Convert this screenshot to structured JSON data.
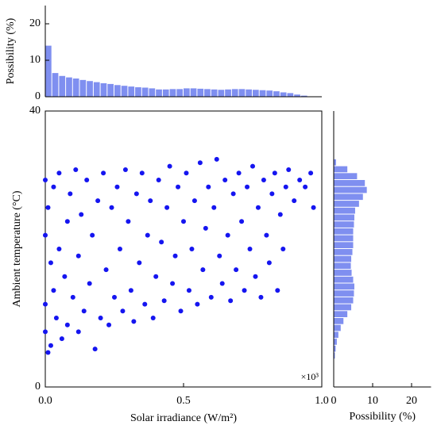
{
  "chart_data": [
    {
      "type": "scatter",
      "x_label": "Solar irradiance (W/m²)",
      "y_label": "Ambient temperature (°C)",
      "annotation": "×10³",
      "color": "#1515f0",
      "xlim": [
        0,
        1
      ],
      "ylim": [
        0,
        40
      ],
      "xticks": [
        {
          "value": 0,
          "label": "0.0"
        },
        {
          "value": 0.5,
          "label": "0.5"
        },
        {
          "value": 1,
          "label": "1.0"
        }
      ],
      "yticks": [
        0,
        40
      ],
      "x": [
        0.0,
        0.0,
        0.0,
        0.0,
        0.01,
        0.01,
        0.02,
        0.02,
        0.03,
        0.03,
        0.04,
        0.05,
        0.05,
        0.06,
        0.07,
        0.08,
        0.08,
        0.09,
        0.1,
        0.11,
        0.12,
        0.12,
        0.13,
        0.14,
        0.15,
        0.16,
        0.17,
        0.18,
        0.19,
        0.2,
        0.21,
        0.22,
        0.23,
        0.24,
        0.25,
        0.26,
        0.27,
        0.28,
        0.29,
        0.3,
        0.31,
        0.32,
        0.33,
        0.34,
        0.35,
        0.36,
        0.37,
        0.38,
        0.39,
        0.4,
        0.41,
        0.42,
        0.43,
        0.44,
        0.45,
        0.46,
        0.47,
        0.48,
        0.49,
        0.5,
        0.51,
        0.52,
        0.53,
        0.54,
        0.55,
        0.56,
        0.57,
        0.58,
        0.59,
        0.6,
        0.61,
        0.62,
        0.63,
        0.64,
        0.65,
        0.66,
        0.67,
        0.68,
        0.69,
        0.7,
        0.71,
        0.72,
        0.73,
        0.74,
        0.75,
        0.76,
        0.77,
        0.78,
        0.79,
        0.8,
        0.81,
        0.82,
        0.83,
        0.84,
        0.85,
        0.86,
        0.87,
        0.88,
        0.9,
        0.92,
        0.94,
        0.96,
        0.97
      ],
      "values": [
        30,
        22,
        12,
        8,
        5,
        26,
        18,
        6,
        29,
        14,
        10,
        31,
        20,
        7,
        16,
        24,
        9,
        28,
        13,
        31.5,
        19,
        8,
        25,
        11,
        30,
        15,
        22,
        5.5,
        27,
        10,
        31,
        17,
        9,
        26,
        13,
        29,
        20,
        11,
        31.5,
        24,
        14,
        9.5,
        28,
        18,
        31,
        12,
        22,
        27,
        10,
        16,
        30,
        21,
        12.5,
        26,
        32,
        15,
        19,
        29,
        11,
        24,
        31,
        14,
        20,
        27,
        12,
        32.5,
        17,
        23,
        29,
        13,
        26,
        33,
        19,
        15,
        30,
        22,
        12.5,
        28,
        17,
        31,
        24,
        14,
        29,
        20,
        32,
        16,
        26,
        13,
        30,
        22,
        18,
        28,
        31,
        14,
        25,
        20,
        29,
        31.5,
        27,
        30,
        29,
        31,
        26
      ]
    },
    {
      "type": "histogram",
      "y_label": "Possibility (%)",
      "color": "#7f8ff0",
      "ylim": [
        0,
        25
      ],
      "yticks": [
        0,
        10,
        20
      ],
      "bins": [
        0,
        0.025,
        0.05,
        0.075,
        0.1,
        0.125,
        0.15,
        0.175,
        0.2,
        0.225,
        0.25,
        0.275,
        0.3,
        0.325,
        0.35,
        0.375,
        0.4,
        0.425,
        0.45,
        0.475,
        0.5,
        0.525,
        0.55,
        0.575,
        0.6,
        0.625,
        0.65,
        0.675,
        0.7,
        0.725,
        0.75,
        0.775,
        0.8,
        0.825,
        0.85,
        0.875,
        0.9,
        0.925,
        0.95,
        0.975,
        1
      ],
      "values": [
        14,
        6.5,
        5.7,
        5.3,
        5.0,
        4.6,
        4.3,
        4.0,
        3.7,
        3.5,
        3.2,
        3.0,
        2.8,
        2.6,
        2.5,
        2.3,
        2.0,
        2.0,
        2.1,
        2.1,
        2.3,
        2.3,
        2.2,
        2.1,
        2.0,
        1.9,
        2.0,
        2.1,
        2.1,
        2.0,
        1.9,
        1.8,
        1.7,
        1.5,
        1.2,
        1.0,
        0.6,
        0.3,
        0.1,
        0.05
      ]
    },
    {
      "type": "hhistogram",
      "x_label": "Possibility (%)",
      "color": "#7f8ff0",
      "xlim": [
        0,
        25
      ],
      "xticks": [
        0,
        10,
        20
      ],
      "bins": [
        4,
        5,
        6,
        7,
        8,
        9,
        10,
        11,
        12,
        13,
        14,
        15,
        16,
        17,
        18,
        19,
        20,
        21,
        22,
        23,
        24,
        25,
        26,
        27,
        28,
        29,
        30,
        31,
        32,
        33
      ],
      "values": [
        0.3,
        0.5,
        0.8,
        1.2,
        1.8,
        2.5,
        3.5,
        4.5,
        5.0,
        5.2,
        5.3,
        5.0,
        4.6,
        4.4,
        4.5,
        4.8,
        5.0,
        5.0,
        5.0,
        5.2,
        5.3,
        5.5,
        6.5,
        7.5,
        8.5,
        8.0,
        6.0,
        3.5,
        0.6
      ]
    }
  ]
}
